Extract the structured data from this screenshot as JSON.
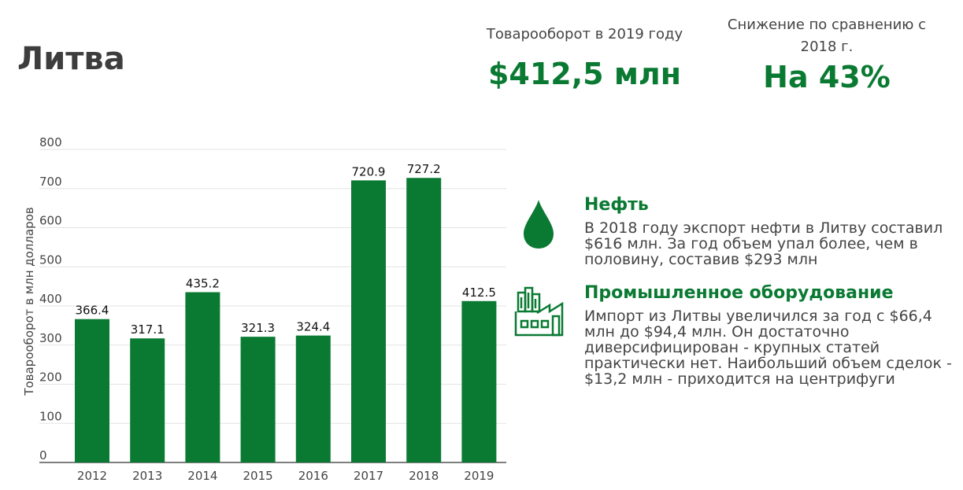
{
  "header": {
    "title": "Литва",
    "kpi_turnover_label": "Товарооборот в 2019 году",
    "kpi_turnover_value": "$412,5 млн",
    "kpi_change_label": "Снижение по сравнению с 2018 г.",
    "kpi_change_value": "На 43%"
  },
  "chart_data": {
    "type": "bar",
    "categories": [
      "2012",
      "2013",
      "2014",
      "2015",
      "2016",
      "2017",
      "2018",
      "2019"
    ],
    "values": [
      366.4,
      317.1,
      435.2,
      321.3,
      324.4,
      720.9,
      727.2,
      412.5
    ],
    "value_labels": [
      "366.4",
      "317.1",
      "435.2",
      "321.3",
      "324.4",
      "720.9",
      "727.2",
      "412.5"
    ],
    "ylabel": "Товарооборот в млн долларов",
    "ylim": [
      0,
      800
    ],
    "yticks": [
      "0",
      "100",
      "200",
      "300",
      "400",
      "500",
      "600",
      "700",
      "800"
    ],
    "grid": true,
    "bar_color": "#0a7a33"
  },
  "info": {
    "oil_icon": "oil-drop-icon",
    "oil_heading": "Нефть",
    "oil_text": "В 2018 году экспорт нефти в Литву составил $616 млн. За год объем упал более, чем в половину, составив $293 млн",
    "industry_icon": "factory-icon",
    "industry_heading": "Промышленное оборудование",
    "industry_text": "Импорт из Литвы увеличился за год с $66,4 млн до $94,4 млн. Он достаточно диверсифицирован - крупных статей практически нет. Наибольший объем сделок - $13,2 млн - приходится на центрифуги"
  },
  "colors": {
    "accent": "#0a7a33",
    "text": "#444444"
  }
}
